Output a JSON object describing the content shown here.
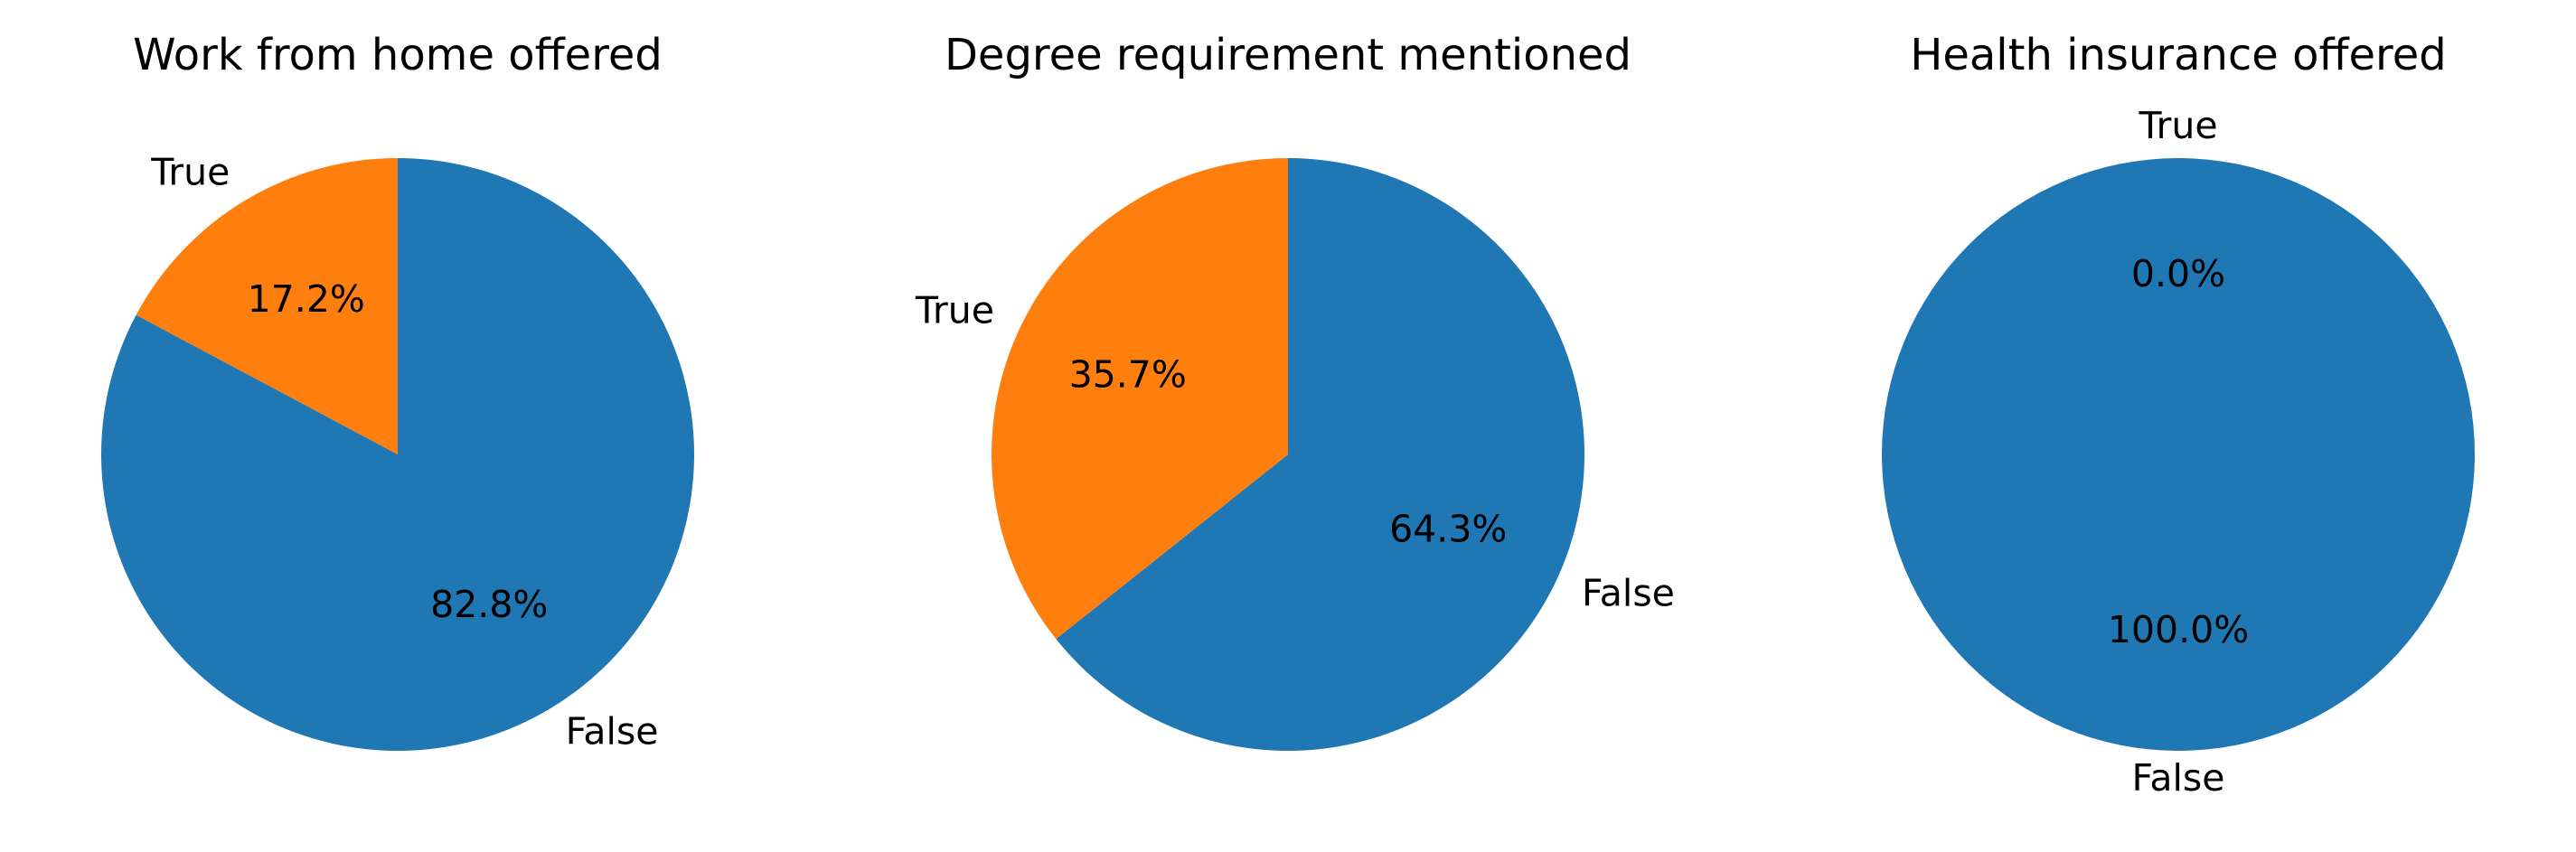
{
  "chart_data": [
    {
      "type": "pie",
      "title": "Work from home offered",
      "categories": [
        "False",
        "True"
      ],
      "values": [
        82.8,
        17.2
      ],
      "percent_labels": [
        "82.8%",
        "17.2%"
      ],
      "colors": [
        "#1f77b4",
        "#ff7f0e"
      ]
    },
    {
      "type": "pie",
      "title": "Degree requirement mentioned",
      "categories": [
        "False",
        "True"
      ],
      "values": [
        64.3,
        35.7
      ],
      "percent_labels": [
        "64.3%",
        "35.7%"
      ],
      "colors": [
        "#1f77b4",
        "#ff7f0e"
      ]
    },
    {
      "type": "pie",
      "title": "Health insurance offered",
      "categories": [
        "False",
        "True"
      ],
      "values": [
        100.0,
        0.0
      ],
      "percent_labels": [
        "100.0%",
        "0.0%"
      ],
      "colors": [
        "#1f77b4",
        "#ff7f0e"
      ]
    }
  ]
}
